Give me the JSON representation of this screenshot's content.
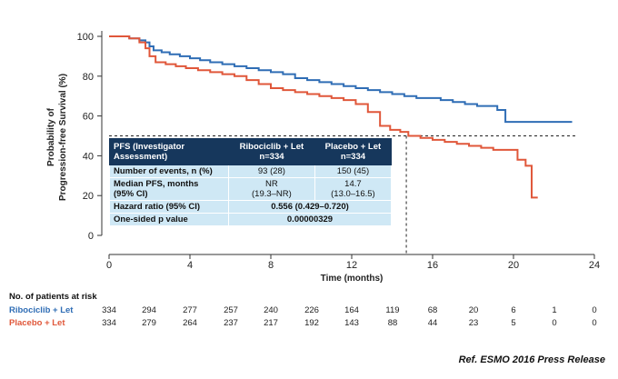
{
  "chart_data": {
    "type": "line",
    "ylabel": "Probability of Progression-free Survival (%)",
    "ylabel_line1": "Probability of",
    "ylabel_line2": "Progression-free Survival (%)",
    "xlabel": "Time (months)",
    "xlim": [
      0,
      24
    ],
    "ylim": [
      0,
      100
    ],
    "xticks": [
      "0",
      "4",
      "8",
      "12",
      "16",
      "20",
      "24"
    ],
    "yticks": [
      "0",
      "20",
      "40",
      "60",
      "80",
      "100"
    ],
    "median_reference_y": 50,
    "median_reference_x": 14.7,
    "series": [
      {
        "name": "Ribociclib + Let",
        "color": "#2f6db5",
        "x": [
          0,
          1.0,
          1.5,
          1.8,
          2.0,
          2.2,
          2.6,
          3.0,
          3.5,
          4.0,
          4.5,
          5.0,
          5.6,
          6.2,
          6.8,
          7.4,
          8.0,
          8.6,
          9.2,
          9.8,
          10.4,
          11.0,
          11.6,
          12.2,
          12.8,
          13.4,
          14.0,
          14.6,
          15.2,
          15.8,
          16.4,
          17.0,
          17.6,
          18.2,
          18.8,
          19.2,
          19.6,
          20.4,
          21.0,
          22.0,
          22.9
        ],
        "y": [
          100,
          99,
          98,
          97,
          95,
          93,
          92,
          91,
          90,
          89,
          88,
          87,
          86,
          85,
          84,
          83,
          82,
          81,
          79,
          78,
          77,
          76,
          75,
          74,
          73,
          72,
          71,
          70,
          69,
          69,
          68,
          67,
          66,
          65,
          65,
          63,
          57,
          57,
          57,
          57,
          57
        ]
      },
      {
        "name": "Placebo + Let",
        "color": "#e0573a",
        "x": [
          0,
          1.0,
          1.5,
          1.8,
          2.0,
          2.3,
          2.8,
          3.3,
          3.8,
          4.4,
          5.0,
          5.6,
          6.2,
          6.8,
          7.4,
          8.0,
          8.6,
          9.2,
          9.8,
          10.4,
          11.0,
          11.6,
          12.2,
          12.8,
          13.4,
          13.9,
          14.4,
          14.8,
          15.4,
          16.0,
          16.6,
          17.2,
          17.8,
          18.4,
          19.0,
          19.6,
          20.2,
          20.6,
          20.9,
          21.2
        ],
        "y": [
          100,
          99,
          97,
          94,
          90,
          87,
          86,
          85,
          84,
          83,
          82,
          81,
          80,
          78,
          76,
          74,
          73,
          72,
          71,
          70,
          69,
          68,
          66,
          62,
          55,
          53,
          52,
          50,
          49,
          48,
          47,
          46,
          45,
          44,
          43,
          43,
          38,
          35,
          19,
          19
        ]
      }
    ]
  },
  "table": {
    "header": [
      "PFS (Investigator Assessment)",
      "Ribociclib + Let n=334",
      "Placebo + Let n=334"
    ],
    "header_parts": {
      "c1_l1": "PFS (Investigator",
      "c1_l2": "Assessment)",
      "c2_l1": "Ribociclib + Let",
      "c2_l2": "n=334",
      "c3_l1": "Placebo + Let",
      "c3_l2": "n=334"
    },
    "rows": {
      "events": {
        "label": "Number of events, n (%)",
        "ribo": "93 (28)",
        "placebo": "150 (45)"
      },
      "median": {
        "label_l1": "Median PFS, months",
        "label_l2": "(95% CI)",
        "ribo_l1": "NR",
        "ribo_l2": "(19.3–NR)",
        "placebo_l1": "14.7",
        "placebo_l2": "(13.0–16.5)"
      },
      "hr": {
        "label": "Hazard ratio (95% CI)",
        "value": "0.556 (0.429–0.720)"
      },
      "pval": {
        "label": "One-sided p value",
        "value": "0.00000329"
      }
    }
  },
  "risk": {
    "title": "No. of patients at risk",
    "ribo": {
      "name": "Ribociclib + Let",
      "color": "#2f6db5",
      "values": [
        "334",
        "294",
        "277",
        "257",
        "240",
        "226",
        "164",
        "119",
        "68",
        "20",
        "6",
        "1",
        "0"
      ]
    },
    "placebo": {
      "name": "Placebo + Let",
      "color": "#e0573a",
      "values": [
        "334",
        "279",
        "264",
        "237",
        "217",
        "192",
        "143",
        "88",
        "44",
        "23",
        "5",
        "0",
        "0"
      ]
    }
  },
  "reference": "Ref. ESMO 2016 Press Release"
}
